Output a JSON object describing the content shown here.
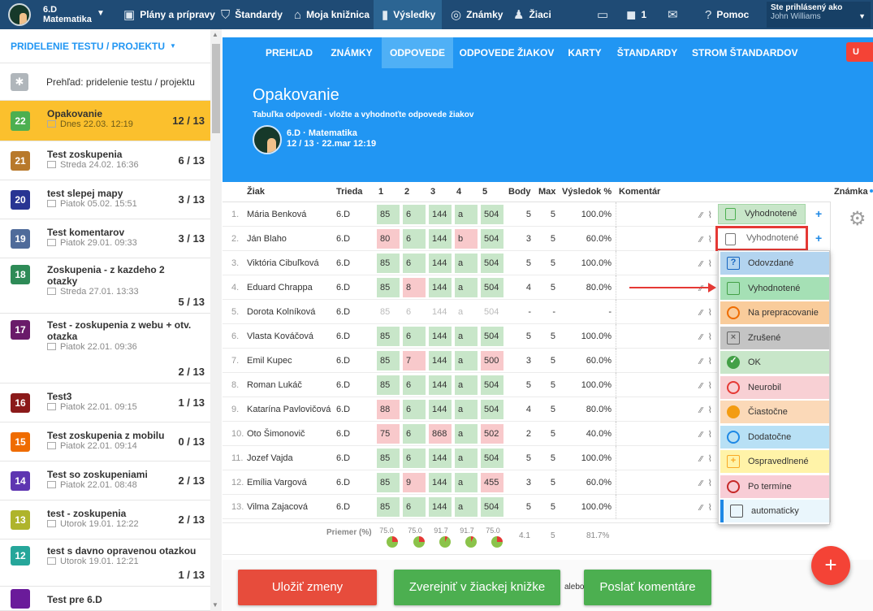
{
  "topbar": {
    "class_name": "6.D",
    "subject": "Matematika",
    "items": [
      {
        "label": "Plány a prípravy",
        "icon": "briefcase-icon"
      },
      {
        "label": "Štandardy",
        "icon": "shield-icon"
      },
      {
        "label": "Moja knižnica",
        "icon": "library-icon"
      },
      {
        "label": "Výsledky",
        "icon": "bar-chart-icon"
      },
      {
        "label": "Známky",
        "icon": "grade-icon"
      },
      {
        "label": "Žiaci",
        "icon": "students-icon"
      }
    ],
    "notifications_count": "1",
    "help_label": "Pomoc",
    "logged_in_label": "Ste prihlásený ako",
    "user_name": "John Williams"
  },
  "sidebar": {
    "header": "PRIDELENIE TESTU / PROJEKTU",
    "overview": "Prehľad: pridelenie testu / projektu",
    "items": [
      {
        "num": "22",
        "color": "#4caf50",
        "title": "Opakovanie",
        "date": "Dnes 22.03. 12:19",
        "count": "12 / 13",
        "selected": true
      },
      {
        "num": "21",
        "color": "#b8792b",
        "title": "Test zoskupenia",
        "date": "Streda 24.02. 16:36",
        "count": "6 / 13"
      },
      {
        "num": "20",
        "color": "#283593",
        "title": "test slepej mapy",
        "date": "Piatok 05.02. 15:51",
        "count": "3 / 13"
      },
      {
        "num": "19",
        "color": "#4f6b9a",
        "title": "Test komentarov",
        "date": "Piatok 29.01. 09:33",
        "count": "3 / 13"
      },
      {
        "num": "18",
        "color": "#2e8b57",
        "title": "Zoskupenia - z kazdeho 2 otazky",
        "date": "Streda 27.01. 13:33",
        "count": "5 / 13"
      },
      {
        "num": "17",
        "color": "#6a1b6a",
        "title": "Test - zoskupenia z webu + otv. otazka",
        "date": "Piatok 22.01. 09:36",
        "count": "2 / 13"
      },
      {
        "num": "16",
        "color": "#8b1a1a",
        "title": "Test3",
        "date": "Piatok 22.01. 09:15",
        "count": "1 / 13"
      },
      {
        "num": "15",
        "color": "#ef6c00",
        "title": "Test zoskupenia z mobilu",
        "date": "Piatok 22.01. 09:14",
        "count": "0 / 13"
      },
      {
        "num": "14",
        "color": "#5e35b1",
        "title": "Test so zoskupeniami",
        "date": "Piatok 22.01. 08:48",
        "count": "2 / 13"
      },
      {
        "num": "13",
        "color": "#afb42b",
        "title": "test - zoskupenia",
        "date": "Utorok 19.01. 12:22",
        "count": "2 / 13"
      },
      {
        "num": "12",
        "color": "#26a69a",
        "title": "test s davno opravenou otazkou",
        "date": "Utorok 19.01. 12:21",
        "count": "1 / 13"
      },
      {
        "num": "",
        "color": "#6a1b9a",
        "title": "Test pre 6.D",
        "date": "",
        "count": ""
      }
    ]
  },
  "nav": {
    "tabs": [
      {
        "label": "PREHĽAD"
      },
      {
        "label": "ZNÁMKY"
      },
      {
        "label": "ODPOVEDE",
        "active": true
      },
      {
        "label": "ODPOVEDE ŽIAKOV"
      },
      {
        "label": "KARTY"
      },
      {
        "label": "ŠTANDARDY"
      },
      {
        "label": "STROM ŠTANDARDOV"
      }
    ],
    "right_button": "U"
  },
  "hero": {
    "title": "Opakovanie",
    "subtitle": "Tabuľka odpovedí - vložte a vyhodnoťte odpovede žiakov",
    "class_label": "6.D · Matematika",
    "info": "12 / 13 · 22.mar 12:19"
  },
  "table": {
    "headers": {
      "student": "Žiak",
      "class": "Trieda",
      "q1": "1",
      "q2": "2",
      "q3": "3",
      "q4": "4",
      "q5": "5",
      "points": "Body",
      "max": "Max",
      "result": "Výsledok %",
      "comment": "Komentár",
      "grade": "Známka"
    },
    "rows": [
      {
        "n": "1.",
        "name": "Mária Benková",
        "cls": "6.D",
        "a": [
          "85",
          "6",
          "144",
          "a",
          "504"
        ],
        "bad": [
          0,
          0,
          0,
          0,
          0
        ],
        "body": "5",
        "max": "5",
        "res": "100.0%",
        "status": "Vyhodnotené"
      },
      {
        "n": "2.",
        "name": "Ján Blaho",
        "cls": "6.D",
        "a": [
          "80",
          "6",
          "144",
          "b",
          "504"
        ],
        "bad": [
          1,
          0,
          0,
          1,
          0
        ],
        "body": "3",
        "max": "5",
        "res": "60.0%",
        "status": "Vyhodnotené"
      },
      {
        "n": "3.",
        "name": "Viktória Cibuľková",
        "cls": "6.D",
        "a": [
          "85",
          "6",
          "144",
          "a",
          "504"
        ],
        "bad": [
          0,
          0,
          0,
          0,
          0
        ],
        "body": "5",
        "max": "5",
        "res": "100.0%"
      },
      {
        "n": "4.",
        "name": "Eduard Chrappa",
        "cls": "6.D",
        "a": [
          "85",
          "8",
          "144",
          "a",
          "504"
        ],
        "bad": [
          0,
          1,
          0,
          0,
          0
        ],
        "body": "4",
        "max": "5",
        "res": "80.0%"
      },
      {
        "n": "5.",
        "name": "Dorota Kolníková",
        "cls": "6.D",
        "a": [
          "85",
          "6",
          "144",
          "a",
          "504"
        ],
        "bad": [
          0,
          0,
          0,
          0,
          0
        ],
        "empty": true,
        "body": "-",
        "max": "-",
        "res": "-"
      },
      {
        "n": "6.",
        "name": "Vlasta Kováčová",
        "cls": "6.D",
        "a": [
          "85",
          "6",
          "144",
          "a",
          "504"
        ],
        "bad": [
          0,
          0,
          0,
          0,
          0
        ],
        "body": "5",
        "max": "5",
        "res": "100.0%"
      },
      {
        "n": "7.",
        "name": "Emil Kupec",
        "cls": "6.D",
        "a": [
          "85",
          "7",
          "144",
          "a",
          "500"
        ],
        "bad": [
          0,
          1,
          0,
          0,
          1
        ],
        "body": "3",
        "max": "5",
        "res": "60.0%"
      },
      {
        "n": "8.",
        "name": "Roman Lukáč",
        "cls": "6.D",
        "a": [
          "85",
          "6",
          "144",
          "a",
          "504"
        ],
        "bad": [
          0,
          0,
          0,
          0,
          0
        ],
        "body": "5",
        "max": "5",
        "res": "100.0%"
      },
      {
        "n": "9.",
        "name": "Katarína Pavlovičová",
        "cls": "6.D",
        "a": [
          "88",
          "6",
          "144",
          "a",
          "504"
        ],
        "bad": [
          1,
          0,
          0,
          0,
          0
        ],
        "body": "4",
        "max": "5",
        "res": "80.0%"
      },
      {
        "n": "10.",
        "name": "Oto Šimonovič",
        "cls": "6.D",
        "a": [
          "75",
          "6",
          "868",
          "a",
          "502"
        ],
        "bad": [
          1,
          0,
          1,
          0,
          1
        ],
        "body": "2",
        "max": "5",
        "res": "40.0%"
      },
      {
        "n": "11.",
        "name": "Jozef Vajda",
        "cls": "6.D",
        "a": [
          "85",
          "6",
          "144",
          "a",
          "504"
        ],
        "bad": [
          0,
          0,
          0,
          0,
          0
        ],
        "body": "5",
        "max": "5",
        "res": "100.0%"
      },
      {
        "n": "12.",
        "name": "Emília Vargová",
        "cls": "6.D",
        "a": [
          "85",
          "9",
          "144",
          "a",
          "455"
        ],
        "bad": [
          0,
          1,
          0,
          0,
          1
        ],
        "body": "3",
        "max": "5",
        "res": "60.0%"
      },
      {
        "n": "13.",
        "name": "Vilma Zajacová",
        "cls": "6.D",
        "a": [
          "85",
          "6",
          "144",
          "a",
          "504"
        ],
        "bad": [
          0,
          0,
          0,
          0,
          0
        ],
        "body": "5",
        "max": "5",
        "res": "100.0%"
      }
    ],
    "averages": {
      "label": "Priemer (%)",
      "values": [
        "75.0",
        "75.0",
        "91.7",
        "91.7",
        "75.0"
      ],
      "body": "4.1",
      "max": "5",
      "result": "81.7%"
    }
  },
  "status_dropdown": {
    "options": [
      {
        "label": "Odovzdané",
        "color": "#b3d4ef"
      },
      {
        "label": "Vyhodnotené",
        "color": "#a5e0b5"
      },
      {
        "label": "Na prepracovanie",
        "color": "#f9cc9b"
      },
      {
        "label": "Zrušené",
        "color": "#c4c4c4"
      },
      {
        "label": "OK",
        "color": "#c8e6c9"
      },
      {
        "label": "Neurobil",
        "color": "#f8d0d4"
      },
      {
        "label": "Čiastočne",
        "color": "#fbd9b8"
      },
      {
        "label": "Dodatočne",
        "color": "#b8e0f5"
      },
      {
        "label": "Ospravedlnené",
        "color": "#fff3a8"
      },
      {
        "label": "Po termíne",
        "color": "#f8cdd6"
      },
      {
        "label": "automaticky",
        "color": "#eaf6fc"
      }
    ]
  },
  "footer": {
    "save": "Uložiť zmeny",
    "publish": "Zverejniť v žiackej knižke",
    "or": "alebo",
    "send": "Poslať komentáre"
  },
  "fab": "+"
}
